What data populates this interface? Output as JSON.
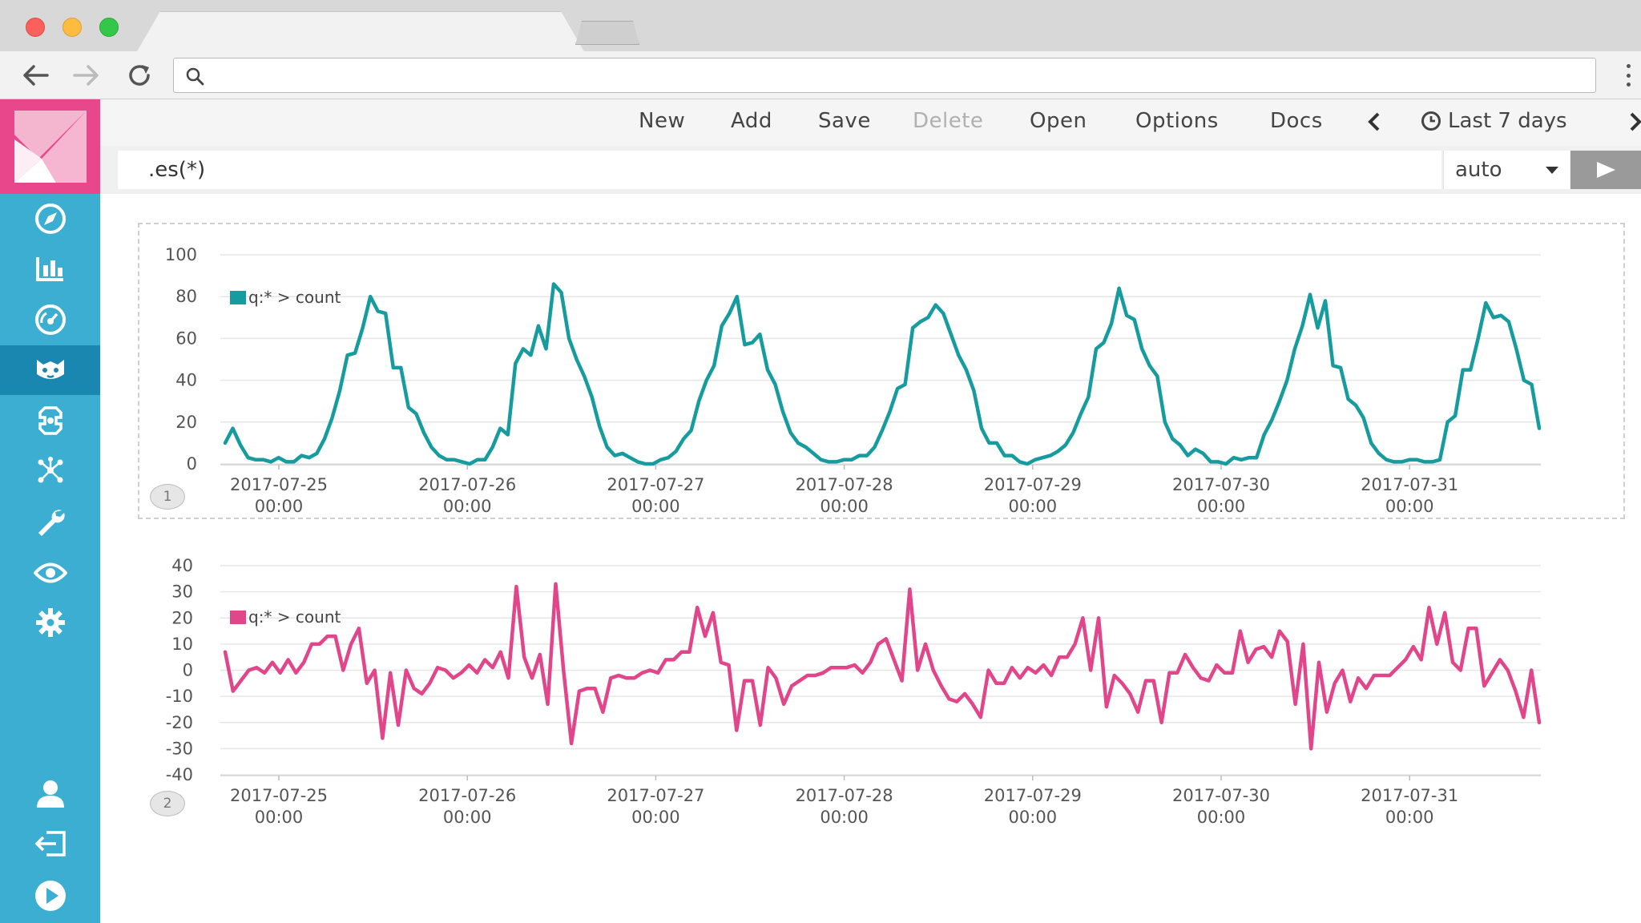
{
  "browser": {
    "url": "",
    "icons": [
      "back-arrow-icon",
      "forward-arrow-icon",
      "reload-icon",
      "search-icon",
      "more-icon"
    ]
  },
  "sidebar": {
    "items": [
      {
        "icon": "compass-icon"
      },
      {
        "icon": "bar-chart-icon"
      },
      {
        "icon": "gauge-icon"
      },
      {
        "icon": "timelion-icon",
        "active": true
      },
      {
        "icon": "canvas-icon"
      },
      {
        "icon": "graph-icon"
      },
      {
        "icon": "wrench-icon"
      },
      {
        "icon": "eye-icon"
      },
      {
        "icon": "gear-icon"
      },
      {
        "icon": "user-icon"
      },
      {
        "icon": "logout-icon"
      },
      {
        "icon": "play-icon"
      }
    ],
    "colors": {
      "bg": "#3caed2",
      "active": "#1a87b0",
      "logo": "#e8488b"
    }
  },
  "topnav": {
    "new": "New",
    "add": "Add",
    "save": "Save",
    "delete": "Delete",
    "open": "Open",
    "options": "Options",
    "docs": "Docs",
    "time_range": "Last 7 days"
  },
  "query": {
    "expression": ".es(*)",
    "interval": "auto"
  },
  "chart_data": [
    {
      "type": "line",
      "legend": "q:* > count",
      "color": "#169c9e",
      "badge": "1",
      "ylim": [
        0,
        100
      ],
      "yticks": [
        "100",
        "80",
        "60",
        "40",
        "20",
        "0"
      ],
      "xticks": [
        {
          "date": "2017-07-25",
          "time": "00:00"
        },
        {
          "date": "2017-07-26",
          "time": "00:00"
        },
        {
          "date": "2017-07-27",
          "time": "00:00"
        },
        {
          "date": "2017-07-28",
          "time": "00:00"
        },
        {
          "date": "2017-07-29",
          "time": "00:00"
        },
        {
          "date": "2017-07-30",
          "time": "00:00"
        },
        {
          "date": "2017-07-31",
          "time": "00:00"
        }
      ],
      "values": [
        10,
        17,
        9,
        3,
        2,
        2,
        1,
        3,
        1,
        1,
        4,
        3,
        5,
        12,
        22,
        35,
        52,
        53,
        65,
        80,
        73,
        72,
        46,
        46,
        27,
        24,
        15,
        8,
        4,
        2,
        2,
        1,
        0,
        2,
        2,
        8,
        17,
        14,
        48,
        55,
        52,
        66,
        55,
        86,
        82,
        60,
        50,
        42,
        32,
        18,
        8,
        4,
        5,
        3,
        1,
        0,
        0,
        2,
        3,
        6,
        12,
        16,
        30,
        40,
        47,
        66,
        72,
        80,
        57,
        58,
        62,
        45,
        38,
        25,
        15,
        10,
        8,
        5,
        2,
        1,
        1,
        2,
        2,
        4,
        4,
        8,
        16,
        25,
        36,
        38,
        65,
        68,
        70,
        76,
        72,
        62,
        52,
        45,
        35,
        17,
        10,
        10,
        4,
        4,
        1,
        0,
        2,
        3,
        4,
        6,
        9,
        15,
        24,
        32,
        55,
        58,
        67,
        84,
        71,
        69,
        55,
        47,
        42,
        20,
        12,
        9,
        4,
        7,
        5,
        1,
        1,
        0,
        3,
        2,
        3,
        3,
        14,
        21,
        30,
        40,
        55,
        66,
        81,
        65,
        78,
        47,
        46,
        31,
        28,
        22,
        10,
        5,
        2,
        1,
        1,
        2,
        2,
        1,
        1,
        2,
        20,
        23,
        45,
        45,
        60,
        77,
        70,
        71,
        68,
        55,
        40,
        38,
        17
      ]
    },
    {
      "type": "line",
      "legend": "q:* > count",
      "color": "#e2468a",
      "badge": "2",
      "ylim": [
        -40,
        40
      ],
      "yticks": [
        "40",
        "30",
        "20",
        "10",
        "0",
        "-10",
        "-20",
        "-30",
        "-40"
      ],
      "xticks": [
        {
          "date": "2017-07-25",
          "time": "00:00"
        },
        {
          "date": "2017-07-26",
          "time": "00:00"
        },
        {
          "date": "2017-07-27",
          "time": "00:00"
        },
        {
          "date": "2017-07-28",
          "time": "00:00"
        },
        {
          "date": "2017-07-29",
          "time": "00:00"
        },
        {
          "date": "2017-07-30",
          "time": "00:00"
        },
        {
          "date": "2017-07-31",
          "time": "00:00"
        }
      ],
      "values": [
        7,
        -8,
        -4,
        0,
        1,
        -1,
        3,
        -1,
        4,
        -1,
        3,
        10,
        10,
        13,
        13,
        0,
        10,
        16,
        -5,
        0,
        -26,
        -1,
        -21,
        0,
        -7,
        -9,
        -5,
        1,
        0,
        -3,
        -1,
        2,
        -1,
        4,
        1,
        7,
        -3,
        32,
        5,
        -3,
        6,
        -13,
        33,
        0,
        -28,
        -8,
        -7,
        -7,
        -16,
        -3,
        -2,
        -3,
        -3,
        -1,
        0,
        -1,
        4,
        4,
        7,
        7,
        24,
        13,
        22,
        3,
        2,
        -23,
        -4,
        -4,
        -21,
        1,
        -3,
        -13,
        -6,
        -4,
        -2,
        -2,
        -1,
        1,
        1,
        1,
        2,
        -1,
        3,
        10,
        12,
        4,
        -4,
        31,
        0,
        10,
        0,
        -6,
        -11,
        -12,
        -9,
        -13,
        -18,
        0,
        -5,
        -5,
        1,
        -3,
        1,
        -1,
        2,
        -2,
        5,
        5,
        10,
        20,
        0,
        20,
        -14,
        -2,
        -5,
        -9,
        -16,
        -4,
        -4,
        -20,
        -1,
        -1,
        6,
        1,
        -3,
        -4,
        2,
        -1,
        -1,
        15,
        3,
        8,
        9,
        5,
        15,
        11,
        -13,
        10,
        -30,
        3,
        -16,
        -5,
        0,
        -12,
        -3,
        -7,
        -2,
        -2,
        -2,
        1,
        4,
        9,
        4,
        24,
        10,
        22,
        3,
        0,
        16,
        16,
        -6,
        -1,
        4,
        0,
        -8,
        -18,
        0,
        -20
      ]
    }
  ]
}
